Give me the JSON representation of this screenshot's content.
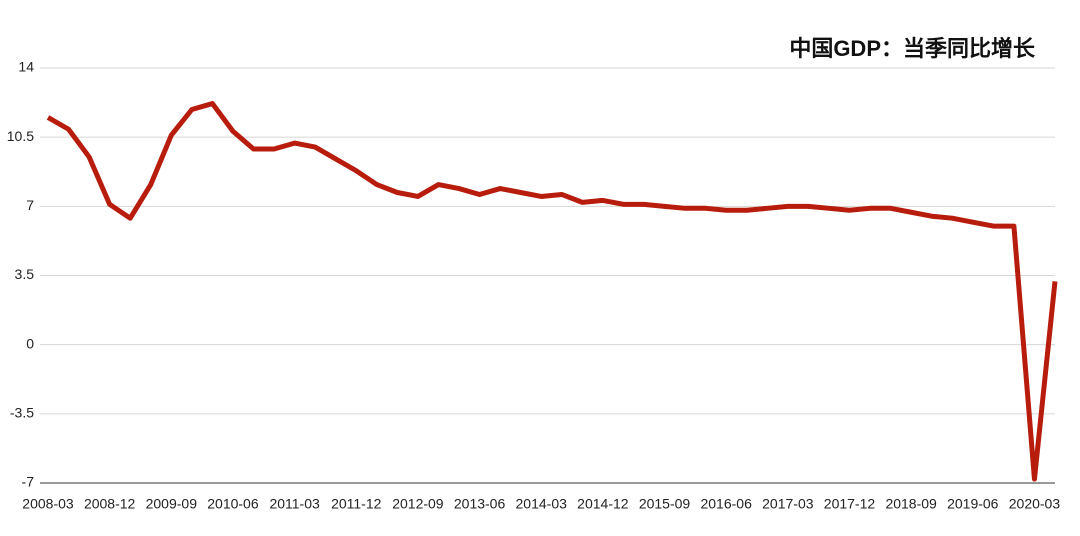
{
  "chart_data": {
    "type": "line",
    "title": "中国GDP：当季同比增长",
    "categories": [
      "2008-03",
      null,
      null,
      "2008-12",
      null,
      null,
      "2009-09",
      null,
      null,
      "2010-06",
      null,
      null,
      "2011-03",
      null,
      null,
      "2011-12",
      null,
      null,
      "2012-09",
      null,
      null,
      "2013-06",
      null,
      null,
      "2014-03",
      null,
      null,
      "2014-12",
      null,
      null,
      "2015-09",
      null,
      null,
      "2016-06",
      null,
      null,
      "2017-03",
      null,
      null,
      "2017-12",
      null,
      null,
      "2018-09",
      null,
      null,
      "2019-06",
      null,
      null,
      "2020-03",
      null
    ],
    "values": [
      11.5,
      10.9,
      9.5,
      7.1,
      6.4,
      8.1,
      10.6,
      11.9,
      12.2,
      10.8,
      9.9,
      9.9,
      10.2,
      10.0,
      9.4,
      8.8,
      8.1,
      7.7,
      7.5,
      8.1,
      7.9,
      7.6,
      7.9,
      7.7,
      7.5,
      7.6,
      7.2,
      7.3,
      7.1,
      7.1,
      7.0,
      6.9,
      6.9,
      6.8,
      6.8,
      6.9,
      7.0,
      7.0,
      6.9,
      6.8,
      6.9,
      6.9,
      6.7,
      6.5,
      6.4,
      6.2,
      6.0,
      6.0,
      -6.8,
      3.2
    ],
    "color": "#b71c0c",
    "ylim": [
      -7,
      14
    ],
    "yticks": [
      14,
      10.5,
      7,
      3.5,
      0,
      -3.5,
      -7
    ],
    "grid": true
  }
}
